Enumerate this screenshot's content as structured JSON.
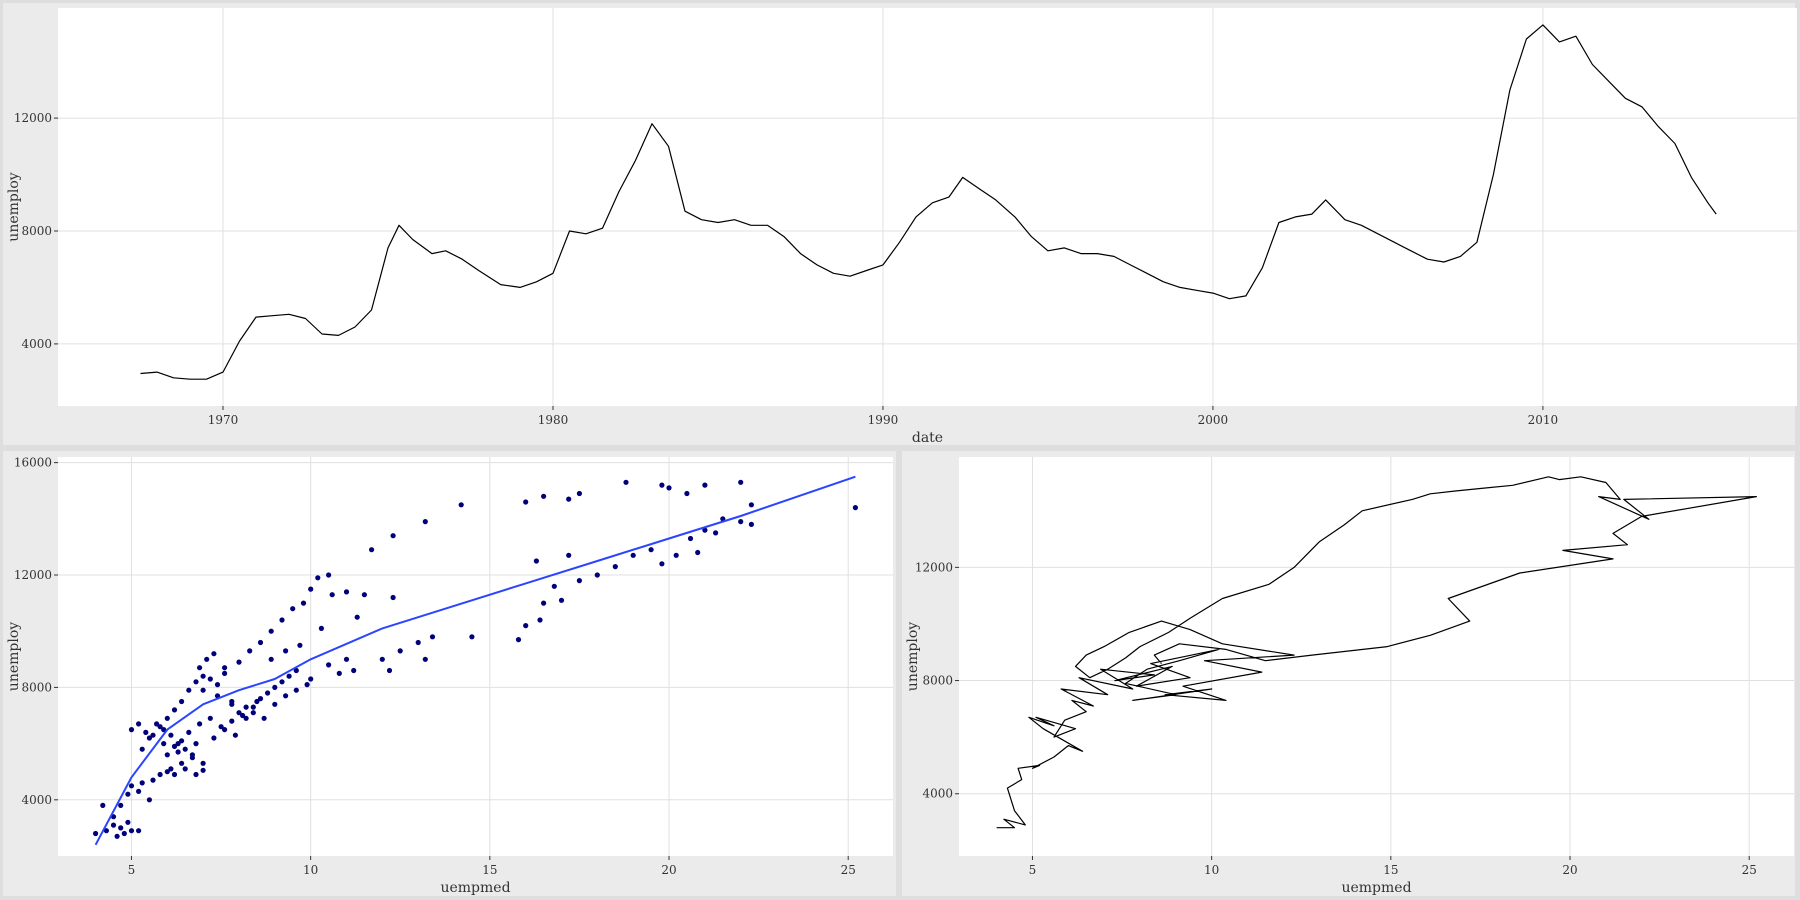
{
  "colors": {
    "background": "#dedede",
    "panel": "#ebebeb",
    "plot": "#ffffff",
    "grid": "#e0e0e0",
    "line": "#000000",
    "points": "#00007a",
    "smooth": "#2b45ff"
  },
  "chart_data": [
    {
      "type": "line",
      "xlabel": "date",
      "ylabel": "unemploy",
      "x_ticks": [
        "1970",
        "1980",
        "1990",
        "2000",
        "2010"
      ],
      "y_ticks": [
        "4000",
        "8000",
        "12000"
      ],
      "xlim": [
        1965.0,
        2017.7
      ],
      "ylim": [
        1800,
        15900
      ],
      "grid": true,
      "series": [
        {
          "x": [
            "1967-07",
            "1968-01",
            "1968-07",
            "1969-01",
            "1969-07",
            "1970-01",
            "1970-07",
            "1971-01",
            "1971-07",
            "1972-01",
            "1972-07",
            "1973-01",
            "1973-07",
            "1974-01",
            "1974-07",
            "1975-01",
            "1975-05",
            "1975-10",
            "1976-05",
            "1976-10",
            "1977-04",
            "1977-10",
            "1978-06",
            "1979-01",
            "1979-07",
            "1980-01",
            "1980-07",
            "1981-01",
            "1981-07",
            "1982-01",
            "1982-07",
            "1983-01",
            "1983-07",
            "1984-01",
            "1984-07",
            "1985-01",
            "1985-07",
            "1986-01",
            "1986-07",
            "1987-01",
            "1987-07",
            "1988-01",
            "1988-07",
            "1989-01",
            "1989-07",
            "1990-01",
            "1990-07",
            "1991-01",
            "1991-07",
            "1992-01",
            "1992-06",
            "1992-12",
            "1993-06",
            "1994-01",
            "1994-07",
            "1995-01",
            "1995-07",
            "1996-01",
            "1996-07",
            "1997-01",
            "1997-07",
            "1998-01",
            "1998-07",
            "1999-01",
            "1999-07",
            "2000-01",
            "2000-07",
            "2001-01",
            "2001-07",
            "2002-01",
            "2002-07",
            "2003-01",
            "2003-06",
            "2004-01",
            "2004-07",
            "2005-01",
            "2005-07",
            "2006-01",
            "2006-07",
            "2007-01",
            "2007-07",
            "2008-01",
            "2008-07",
            "2009-01",
            "2009-07",
            "2010-01",
            "2010-07",
            "2011-01",
            "2011-07",
            "2012-01",
            "2012-07",
            "2013-01",
            "2013-07",
            "2014-01",
            "2014-07",
            "2015-01",
            "2015-04"
          ],
          "y": [
            2950,
            3000,
            2800,
            2750,
            2750,
            3000,
            4100,
            4950,
            5000,
            5050,
            4900,
            4350,
            4300,
            4600,
            5200,
            7400,
            8200,
            7700,
            7200,
            7300,
            7000,
            6600,
            6100,
            6000,
            6200,
            6500,
            8000,
            7900,
            8100,
            9400,
            10500,
            11800,
            11000,
            8700,
            8400,
            8300,
            8400,
            8200,
            8200,
            7800,
            7200,
            6800,
            6500,
            6400,
            6600,
            6800,
            7600,
            8500,
            9000,
            9200,
            9900,
            9500,
            9100,
            8500,
            7800,
            7300,
            7400,
            7200,
            7200,
            7100,
            6800,
            6500,
            6200,
            6000,
            5900,
            5800,
            5600,
            5700,
            6700,
            8300,
            8500,
            8600,
            9100,
            8400,
            8200,
            7900,
            7600,
            7300,
            7000,
            6900,
            7100,
            7600,
            10000,
            13000,
            14800,
            15300,
            14700,
            14900,
            13900,
            13300,
            12700,
            12400,
            11700,
            11100,
            9900,
            9000,
            8600
          ]
        }
      ]
    },
    {
      "type": "scatter",
      "xlabel": "uempmed",
      "ylabel": "unemploy",
      "x_ticks": [
        "5",
        "10",
        "15",
        "20",
        "25"
      ],
      "y_ticks": [
        "4000",
        "8000",
        "12000",
        "16000"
      ],
      "xlim": [
        2.95,
        26.25
      ],
      "ylim": [
        2000,
        16200
      ],
      "grid": true,
      "points": [
        [
          4.0,
          2800
        ],
        [
          4.2,
          3800
        ],
        [
          4.3,
          2900
        ],
        [
          4.5,
          3100
        ],
        [
          4.6,
          2700
        ],
        [
          4.7,
          3000
        ],
        [
          4.8,
          2800
        ],
        [
          4.9,
          3200
        ],
        [
          5.0,
          2900
        ],
        [
          5.2,
          2900
        ],
        [
          4.5,
          3400
        ],
        [
          4.7,
          3800
        ],
        [
          4.9,
          4200
        ],
        [
          5.0,
          4500
        ],
        [
          5.2,
          4300
        ],
        [
          5.3,
          4600
        ],
        [
          5.5,
          4000
        ],
        [
          5.6,
          4700
        ],
        [
          5.8,
          4900
        ],
        [
          6.0,
          5000
        ],
        [
          6.2,
          4900
        ],
        [
          6.5,
          5100
        ],
        [
          6.8,
          4900
        ],
        [
          7.0,
          5050
        ],
        [
          5.3,
          5800
        ],
        [
          5.5,
          6200
        ],
        [
          5.7,
          6700
        ],
        [
          5.9,
          6500
        ],
        [
          6.1,
          6300
        ],
        [
          6.3,
          6000
        ],
        [
          6.5,
          5800
        ],
        [
          6.7,
          5600
        ],
        [
          5.0,
          6500
        ],
        [
          5.2,
          6700
        ],
        [
          5.4,
          6400
        ],
        [
          5.8,
          6600
        ],
        [
          6.0,
          6900
        ],
        [
          6.2,
          7200
        ],
        [
          6.4,
          7500
        ],
        [
          6.6,
          7900
        ],
        [
          6.8,
          8200
        ],
        [
          7.0,
          8400
        ],
        [
          7.2,
          8300
        ],
        [
          7.4,
          8100
        ],
        [
          7.6,
          8500
        ],
        [
          6.9,
          8700
        ],
        [
          7.1,
          9000
        ],
        [
          7.3,
          9200
        ],
        [
          7.6,
          8700
        ],
        [
          7.8,
          7400
        ],
        [
          8.0,
          7100
        ],
        [
          8.2,
          6900
        ],
        [
          8.4,
          7300
        ],
        [
          8.6,
          7600
        ],
        [
          8.8,
          7800
        ],
        [
          9.0,
          8000
        ],
        [
          9.2,
          8200
        ],
        [
          9.4,
          8400
        ],
        [
          9.6,
          8600
        ],
        [
          8.0,
          8900
        ],
        [
          8.3,
          9300
        ],
        [
          8.6,
          9600
        ],
        [
          8.9,
          10000
        ],
        [
          9.2,
          10400
        ],
        [
          9.5,
          10800
        ],
        [
          9.8,
          11000
        ],
        [
          10.0,
          11500
        ],
        [
          10.2,
          11900
        ],
        [
          10.5,
          12000
        ],
        [
          11.0,
          11400
        ],
        [
          11.5,
          11300
        ],
        [
          10.8,
          8500
        ],
        [
          11.2,
          8600
        ],
        [
          12.0,
          9000
        ],
        [
          12.5,
          9300
        ],
        [
          13.0,
          9600
        ],
        [
          13.4,
          9800
        ],
        [
          10.0,
          8300
        ],
        [
          10.5,
          8800
        ],
        [
          11.0,
          9000
        ],
        [
          12.2,
          8600
        ],
        [
          13.2,
          9000
        ],
        [
          14.5,
          9800
        ],
        [
          12.3,
          13400
        ],
        [
          13.2,
          13900
        ],
        [
          14.2,
          14500
        ],
        [
          11.7,
          12900
        ],
        [
          12.3,
          11200
        ],
        [
          16.0,
          14600
        ],
        [
          16.5,
          14800
        ],
        [
          17.5,
          14900
        ],
        [
          17.2,
          14700
        ],
        [
          18.8,
          15300
        ],
        [
          19.8,
          15200
        ],
        [
          20.0,
          15100
        ],
        [
          20.5,
          14900
        ],
        [
          21.0,
          15200
        ],
        [
          22.0,
          15300
        ],
        [
          22.3,
          14500
        ],
        [
          21.5,
          14000
        ],
        [
          21.0,
          13600
        ],
        [
          22.0,
          13900
        ],
        [
          22.3,
          13800
        ],
        [
          15.8,
          9700
        ],
        [
          16.0,
          10200
        ],
        [
          16.4,
          10400
        ],
        [
          16.5,
          11000
        ],
        [
          17.0,
          11100
        ],
        [
          16.8,
          11600
        ],
        [
          17.5,
          11800
        ],
        [
          18.0,
          12000
        ],
        [
          18.5,
          12300
        ],
        [
          19.0,
          12700
        ],
        [
          19.5,
          12900
        ],
        [
          19.8,
          12400
        ],
        [
          20.2,
          12700
        ],
        [
          20.6,
          13300
        ],
        [
          17.2,
          12700
        ],
        [
          16.3,
          12500
        ],
        [
          20.8,
          12800
        ],
        [
          21.3,
          13500
        ],
        [
          25.2,
          14400
        ],
        [
          6.0,
          5600
        ],
        [
          6.2,
          5900
        ],
        [
          6.4,
          6100
        ],
        [
          6.6,
          6400
        ],
        [
          6.9,
          6700
        ],
        [
          7.2,
          6900
        ],
        [
          7.5,
          6600
        ],
        [
          7.8,
          6800
        ],
        [
          8.1,
          7000
        ],
        [
          8.4,
          7100
        ],
        [
          8.7,
          6900
        ],
        [
          9.0,
          7400
        ],
        [
          9.3,
          7700
        ],
        [
          9.6,
          7900
        ],
        [
          9.9,
          8100
        ],
        [
          7.0,
          7900
        ],
        [
          7.4,
          7700
        ],
        [
          7.8,
          7500
        ],
        [
          8.2,
          7300
        ],
        [
          8.5,
          7500
        ],
        [
          5.6,
          6300
        ],
        [
          5.9,
          6000
        ],
        [
          6.3,
          5700
        ],
        [
          6.7,
          5500
        ],
        [
          7.0,
          5300
        ],
        [
          7.3,
          6200
        ],
        [
          7.6,
          6500
        ],
        [
          7.9,
          6300
        ],
        [
          6.1,
          5100
        ],
        [
          6.4,
          5300
        ],
        [
          6.8,
          6000
        ],
        [
          8.9,
          9000
        ],
        [
          9.3,
          9300
        ],
        [
          9.7,
          9500
        ],
        [
          10.3,
          10100
        ],
        [
          11.3,
          10500
        ],
        [
          10.6,
          11300
        ]
      ],
      "smooth": {
        "x": [
          4.0,
          5.0,
          6.0,
          7.0,
          8.0,
          9.0,
          10.0,
          12.0,
          14.0,
          16.0,
          18.0,
          20.0,
          22.0,
          25.2
        ],
        "y": [
          2400,
          4800,
          6500,
          7400,
          7900,
          8300,
          9000,
          10100,
          10900,
          11700,
          12500,
          13300,
          14100,
          15500
        ]
      }
    },
    {
      "type": "line",
      "xlabel": "uempmed",
      "ylabel": "unemploy",
      "x_ticks": [
        "5",
        "10",
        "15",
        "20",
        "25"
      ],
      "y_ticks": [
        "4000",
        "8000",
        "12000"
      ],
      "xlim": [
        2.95,
        26.25
      ],
      "ylim": [
        1800,
        15900
      ],
      "grid": true,
      "series": [
        {
          "x": [
            4.0,
            4.5,
            4.2,
            4.8,
            4.5,
            4.3,
            4.7,
            4.6,
            5.2,
            5.0,
            5.6,
            6.0,
            6.4,
            5.3,
            4.9,
            5.6,
            5.1,
            6.2,
            5.6,
            5.9,
            6.5,
            6.1,
            6.7,
            5.8,
            7.1,
            6.3,
            7.8,
            6.9,
            8.4,
            7.3,
            8.9,
            7.9,
            9.4,
            8.3,
            10.2,
            9.1,
            8.2,
            7.6,
            9.0,
            7.8,
            10.0,
            8.7,
            10.4,
            9.2,
            11.4,
            9.8,
            12.3,
            10.3,
            9.4,
            8.6,
            7.7,
            7.0,
            6.5,
            6.2,
            6.6,
            7.1,
            7.6,
            8.0,
            8.8,
            9.4,
            10.3,
            11.6,
            12.3,
            13.0,
            13.7,
            14.2,
            15.6,
            16.1,
            16.8,
            17.6,
            18.4,
            19.4,
            19.7,
            20.3,
            21.0,
            21.4,
            20.8,
            22.2,
            21.5,
            25.2,
            22.0,
            21.2,
            21.6,
            19.8,
            21.2,
            18.6,
            16.6,
            17.2,
            16.1,
            14.9,
            12.8,
            11.5,
            10.4,
            9.1,
            8.4,
            8.6
          ],
          "y": [
            2800,
            2800,
            3100,
            2900,
            3400,
            4200,
            4500,
            4900,
            5000,
            4900,
            5300,
            5700,
            5500,
            6300,
            6700,
            6400,
            6700,
            6300,
            6000,
            6600,
            6900,
            7300,
            7100,
            7700,
            7500,
            8100,
            7700,
            8400,
            8200,
            8000,
            8500,
            7800,
            8100,
            8600,
            9100,
            8700,
            8400,
            7900,
            7500,
            7300,
            7700,
            7500,
            7300,
            7800,
            8300,
            8700,
            8900,
            9300,
            9800,
            10100,
            9700,
            9200,
            8900,
            8500,
            8100,
            8400,
            8800,
            9200,
            9700,
            10200,
            10900,
            11400,
            12000,
            12900,
            13500,
            14000,
            14400,
            14600,
            14700,
            14800,
            14900,
            15200,
            15100,
            15200,
            15000,
            14400,
            14500,
            13700,
            14400,
            14500,
            13800,
            13200,
            12800,
            12600,
            12300,
            11800,
            10900,
            10100,
            9600,
            9200,
            8900,
            8700,
            9100,
            9300,
            8900,
            8600
          ]
        }
      ]
    }
  ]
}
